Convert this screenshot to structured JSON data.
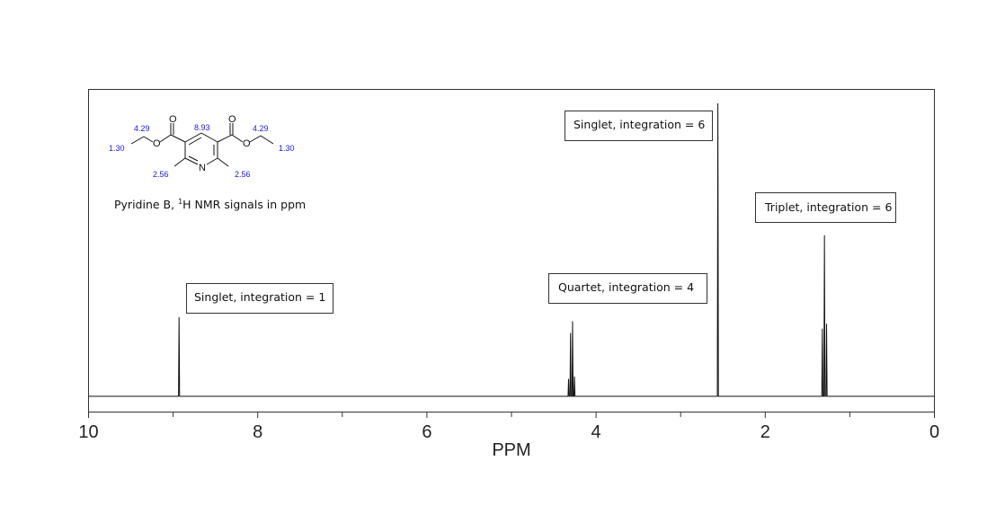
{
  "chart_data": {
    "type": "line",
    "xlabel": "PPM",
    "xlim": [
      10,
      0
    ],
    "x_reversed": true,
    "x_ticks_major": [
      10,
      8,
      6,
      4,
      2,
      0
    ],
    "x_ticks_minor": [
      9,
      7,
      5,
      3,
      1
    ],
    "grid": false,
    "peaks": [
      {
        "ppm": 8.93,
        "height": 0.27,
        "multiplicity": "singlet",
        "lines": [
          0
        ],
        "rel": [
          1
        ]
      },
      {
        "ppm": 4.29,
        "height": 0.27,
        "multiplicity": "quartet",
        "lines": [
          -0.035,
          -0.012,
          0.012,
          0.035
        ],
        "rel": [
          0.25,
          0.95,
          0.8,
          0.22
        ]
      },
      {
        "ppm": 2.56,
        "height": 1.0,
        "multiplicity": "singlet",
        "lines": [
          0
        ],
        "rel": [
          1
        ]
      },
      {
        "ppm": 1.3,
        "height": 0.55,
        "multiplicity": "triplet",
        "lines": [
          -0.025,
          0,
          0.025
        ],
        "rel": [
          0.45,
          1.0,
          0.42
        ]
      }
    ],
    "annotations": [
      {
        "text": "Singlet, integration = 1"
      },
      {
        "text": "Quartet, integration = 4"
      },
      {
        "text": "Singlet, integration = 6"
      },
      {
        "text": "Triplet, integration = 6"
      }
    ]
  },
  "molecule": {
    "caption_prefix": "Pyridine B, ",
    "caption_sup": "1",
    "caption_suffix": "H NMR signals in ppm",
    "atoms": {
      "o_left_carbonyl": "O",
      "o_right_carbonyl": "O",
      "o_left_ester": "O",
      "o_right_ester": "O",
      "n_ring": "N"
    },
    "shift_labels": {
      "left_ch2": "4.29",
      "left_ch3": "1.30",
      "ring_h": "8.93",
      "right_ch2": "4.29",
      "right_ch3": "1.30",
      "left_methyl": "2.56",
      "right_methyl": "2.56"
    }
  }
}
